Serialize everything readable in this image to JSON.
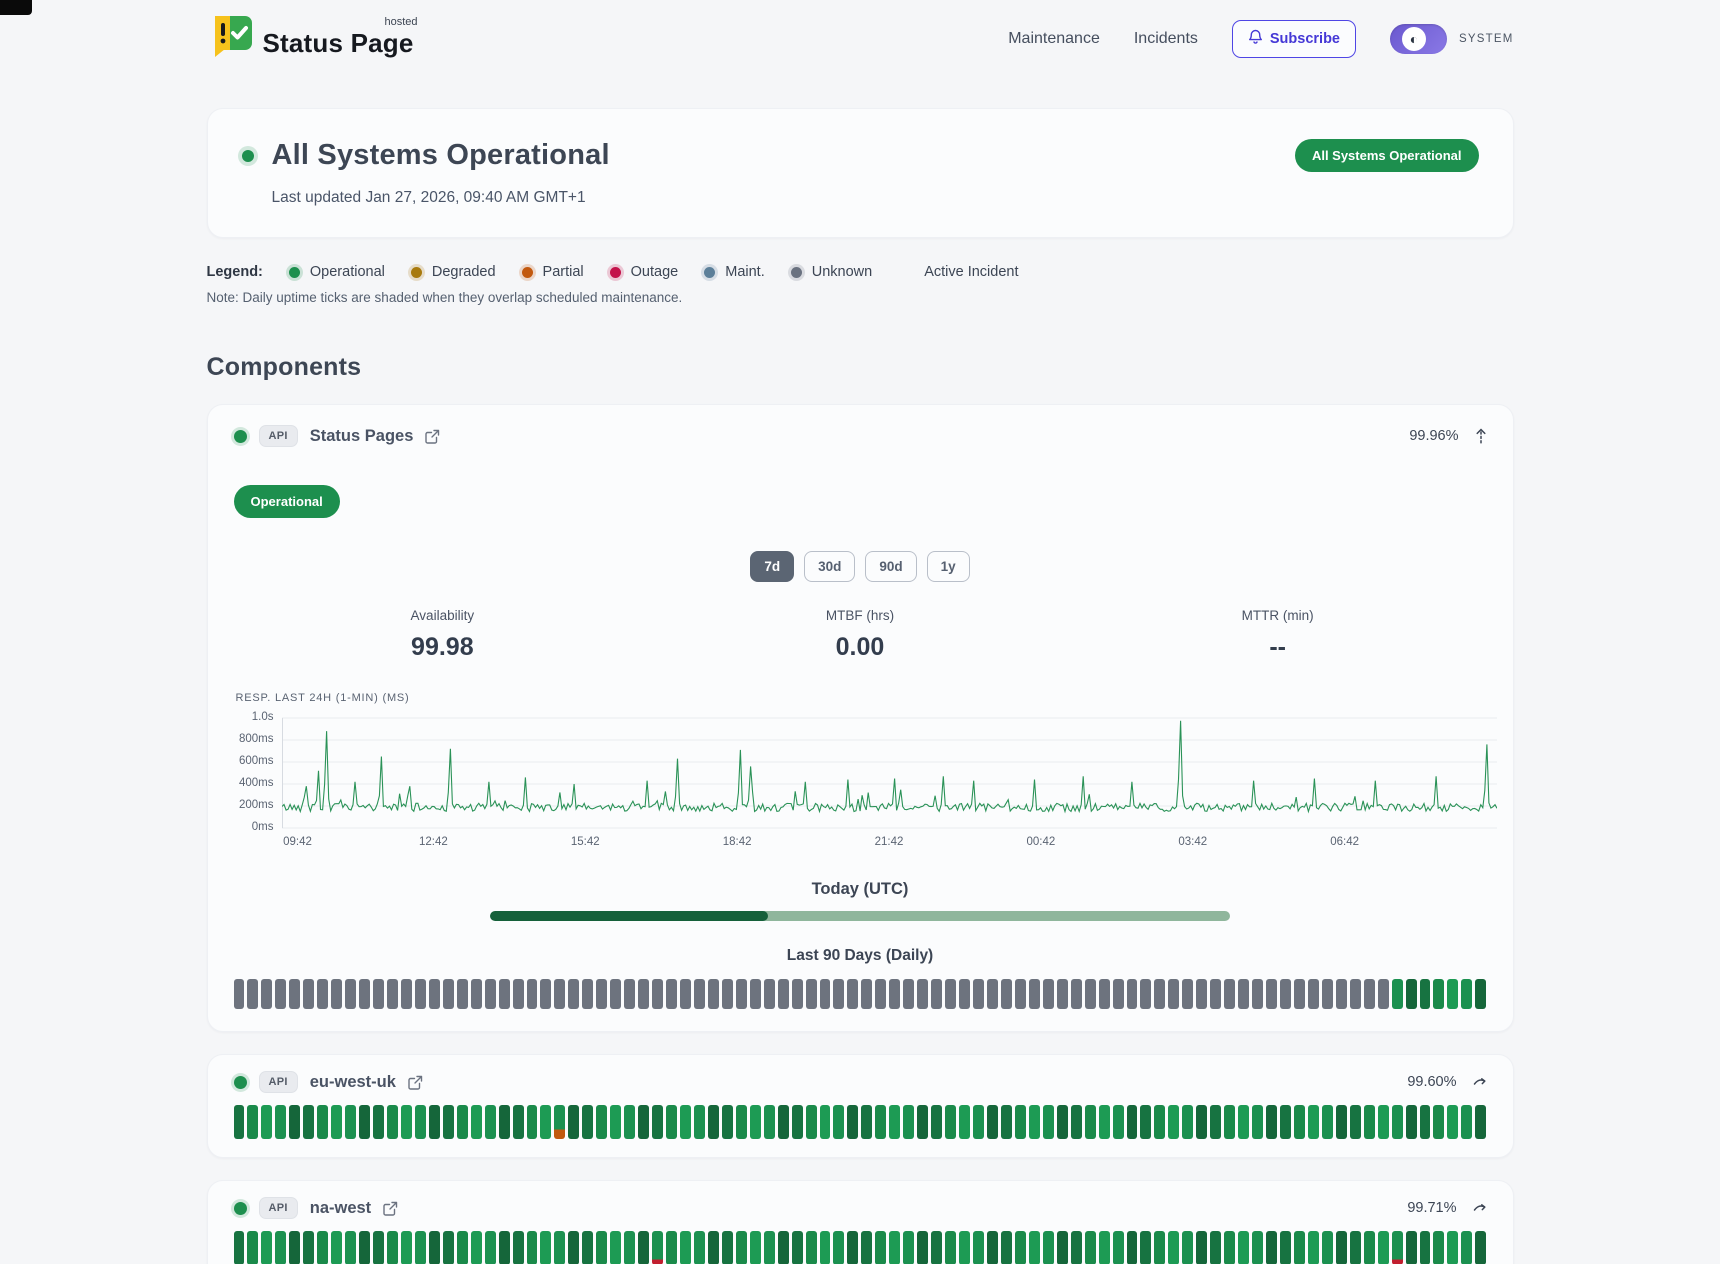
{
  "brand": {
    "name": "Status Page",
    "superscript": "hosted"
  },
  "nav": {
    "items": [
      {
        "label": "Maintenance"
      },
      {
        "label": "Incidents"
      }
    ],
    "subscribe_label": "Subscribe",
    "theme_label": "SYSTEM"
  },
  "hero": {
    "status_title": "All Systems Operational",
    "last_updated": "Last updated Jan 27, 2026, 09:40 AM GMT+1",
    "badge": "All Systems Operational",
    "status_color": "#1d8f4e"
  },
  "legend": {
    "label": "Legend:",
    "items": [
      {
        "label": "Operational",
        "color": "#1d8f4e"
      },
      {
        "label": "Degraded",
        "color": "#a87a0e"
      },
      {
        "label": "Partial",
        "color": "#c2590f"
      },
      {
        "label": "Outage",
        "color": "#c3134b"
      },
      {
        "label": "Maint.",
        "color": "#5c7f99"
      },
      {
        "label": "Unknown",
        "color": "#6a7280"
      }
    ],
    "active_incident_label": "Active Incident",
    "note": "Note: Daily uptime ticks are shaded when they overlap scheduled maintenance."
  },
  "components_heading": "Components",
  "component_detail": {
    "tag": "API",
    "name": "Status Pages",
    "uptime": "99.96%",
    "status_badge": "Operational",
    "ranges": [
      {
        "label": "7d",
        "active": true
      },
      {
        "label": "30d",
        "active": false
      },
      {
        "label": "90d",
        "active": false
      },
      {
        "label": "1y",
        "active": false
      }
    ],
    "stats": [
      {
        "label": "Availability",
        "value": "99.98"
      },
      {
        "label": "MTBF (hrs)",
        "value": "0.00"
      },
      {
        "label": "MTTR (min)",
        "value": "--"
      }
    ],
    "chart": {
      "type": "line",
      "caption": "RESP. LAST 24H (1-MIN) (MS)",
      "y_ticks": [
        {
          "label": "1.0s",
          "ms": 1000
        },
        {
          "label": "800ms",
          "ms": 800
        },
        {
          "label": "600ms",
          "ms": 600
        },
        {
          "label": "400ms",
          "ms": 400
        },
        {
          "label": "200ms",
          "ms": 200
        },
        {
          "label": "0ms",
          "ms": 0
        }
      ],
      "x_ticks": [
        "09:42",
        "12:42",
        "15:42",
        "18:42",
        "21:42",
        "00:42",
        "03:42",
        "06:42"
      ],
      "ylim_ms": [
        0,
        1000
      ],
      "baseline_ms": 200,
      "line_color": "#2a9257",
      "spikes": [
        [
          0.02,
          380
        ],
        [
          0.03,
          520
        ],
        [
          0.036,
          880
        ],
        [
          0.06,
          420
        ],
        [
          0.082,
          650
        ],
        [
          0.105,
          380
        ],
        [
          0.138,
          720
        ],
        [
          0.17,
          420
        ],
        [
          0.2,
          460
        ],
        [
          0.24,
          400
        ],
        [
          0.3,
          430
        ],
        [
          0.325,
          630
        ],
        [
          0.378,
          710
        ],
        [
          0.385,
          560
        ],
        [
          0.43,
          420
        ],
        [
          0.465,
          440
        ],
        [
          0.505,
          450
        ],
        [
          0.545,
          470
        ],
        [
          0.57,
          430
        ],
        [
          0.62,
          440
        ],
        [
          0.66,
          470
        ],
        [
          0.7,
          420
        ],
        [
          0.74,
          975
        ],
        [
          0.8,
          430
        ],
        [
          0.85,
          450
        ],
        [
          0.9,
          430
        ],
        [
          0.95,
          470
        ],
        [
          0.992,
          760
        ]
      ]
    },
    "today_label": "Today (UTC)",
    "today_progress": 0.375,
    "history_label": "Last 90 Days (Daily)",
    "history": [
      {
        "status": "unknown",
        "count": 83
      },
      {
        "status": "operational",
        "count": 7
      }
    ]
  },
  "components": [
    {
      "tag": "API",
      "name": "eu-west-uk",
      "uptime": "99.60%",
      "history": [
        {
          "status": "operational",
          "count": 23
        },
        {
          "status": "partial",
          "count": 1
        },
        {
          "status": "operational",
          "count": 66
        }
      ]
    },
    {
      "tag": "API",
      "name": "na-west",
      "uptime": "99.71%",
      "history": [
        {
          "status": "operational",
          "count": 30
        },
        {
          "status": "outage",
          "count": 1
        },
        {
          "status": "operational",
          "count": 52
        },
        {
          "status": "outage",
          "count": 1
        },
        {
          "status": "operational",
          "count": 6
        }
      ]
    }
  ]
}
